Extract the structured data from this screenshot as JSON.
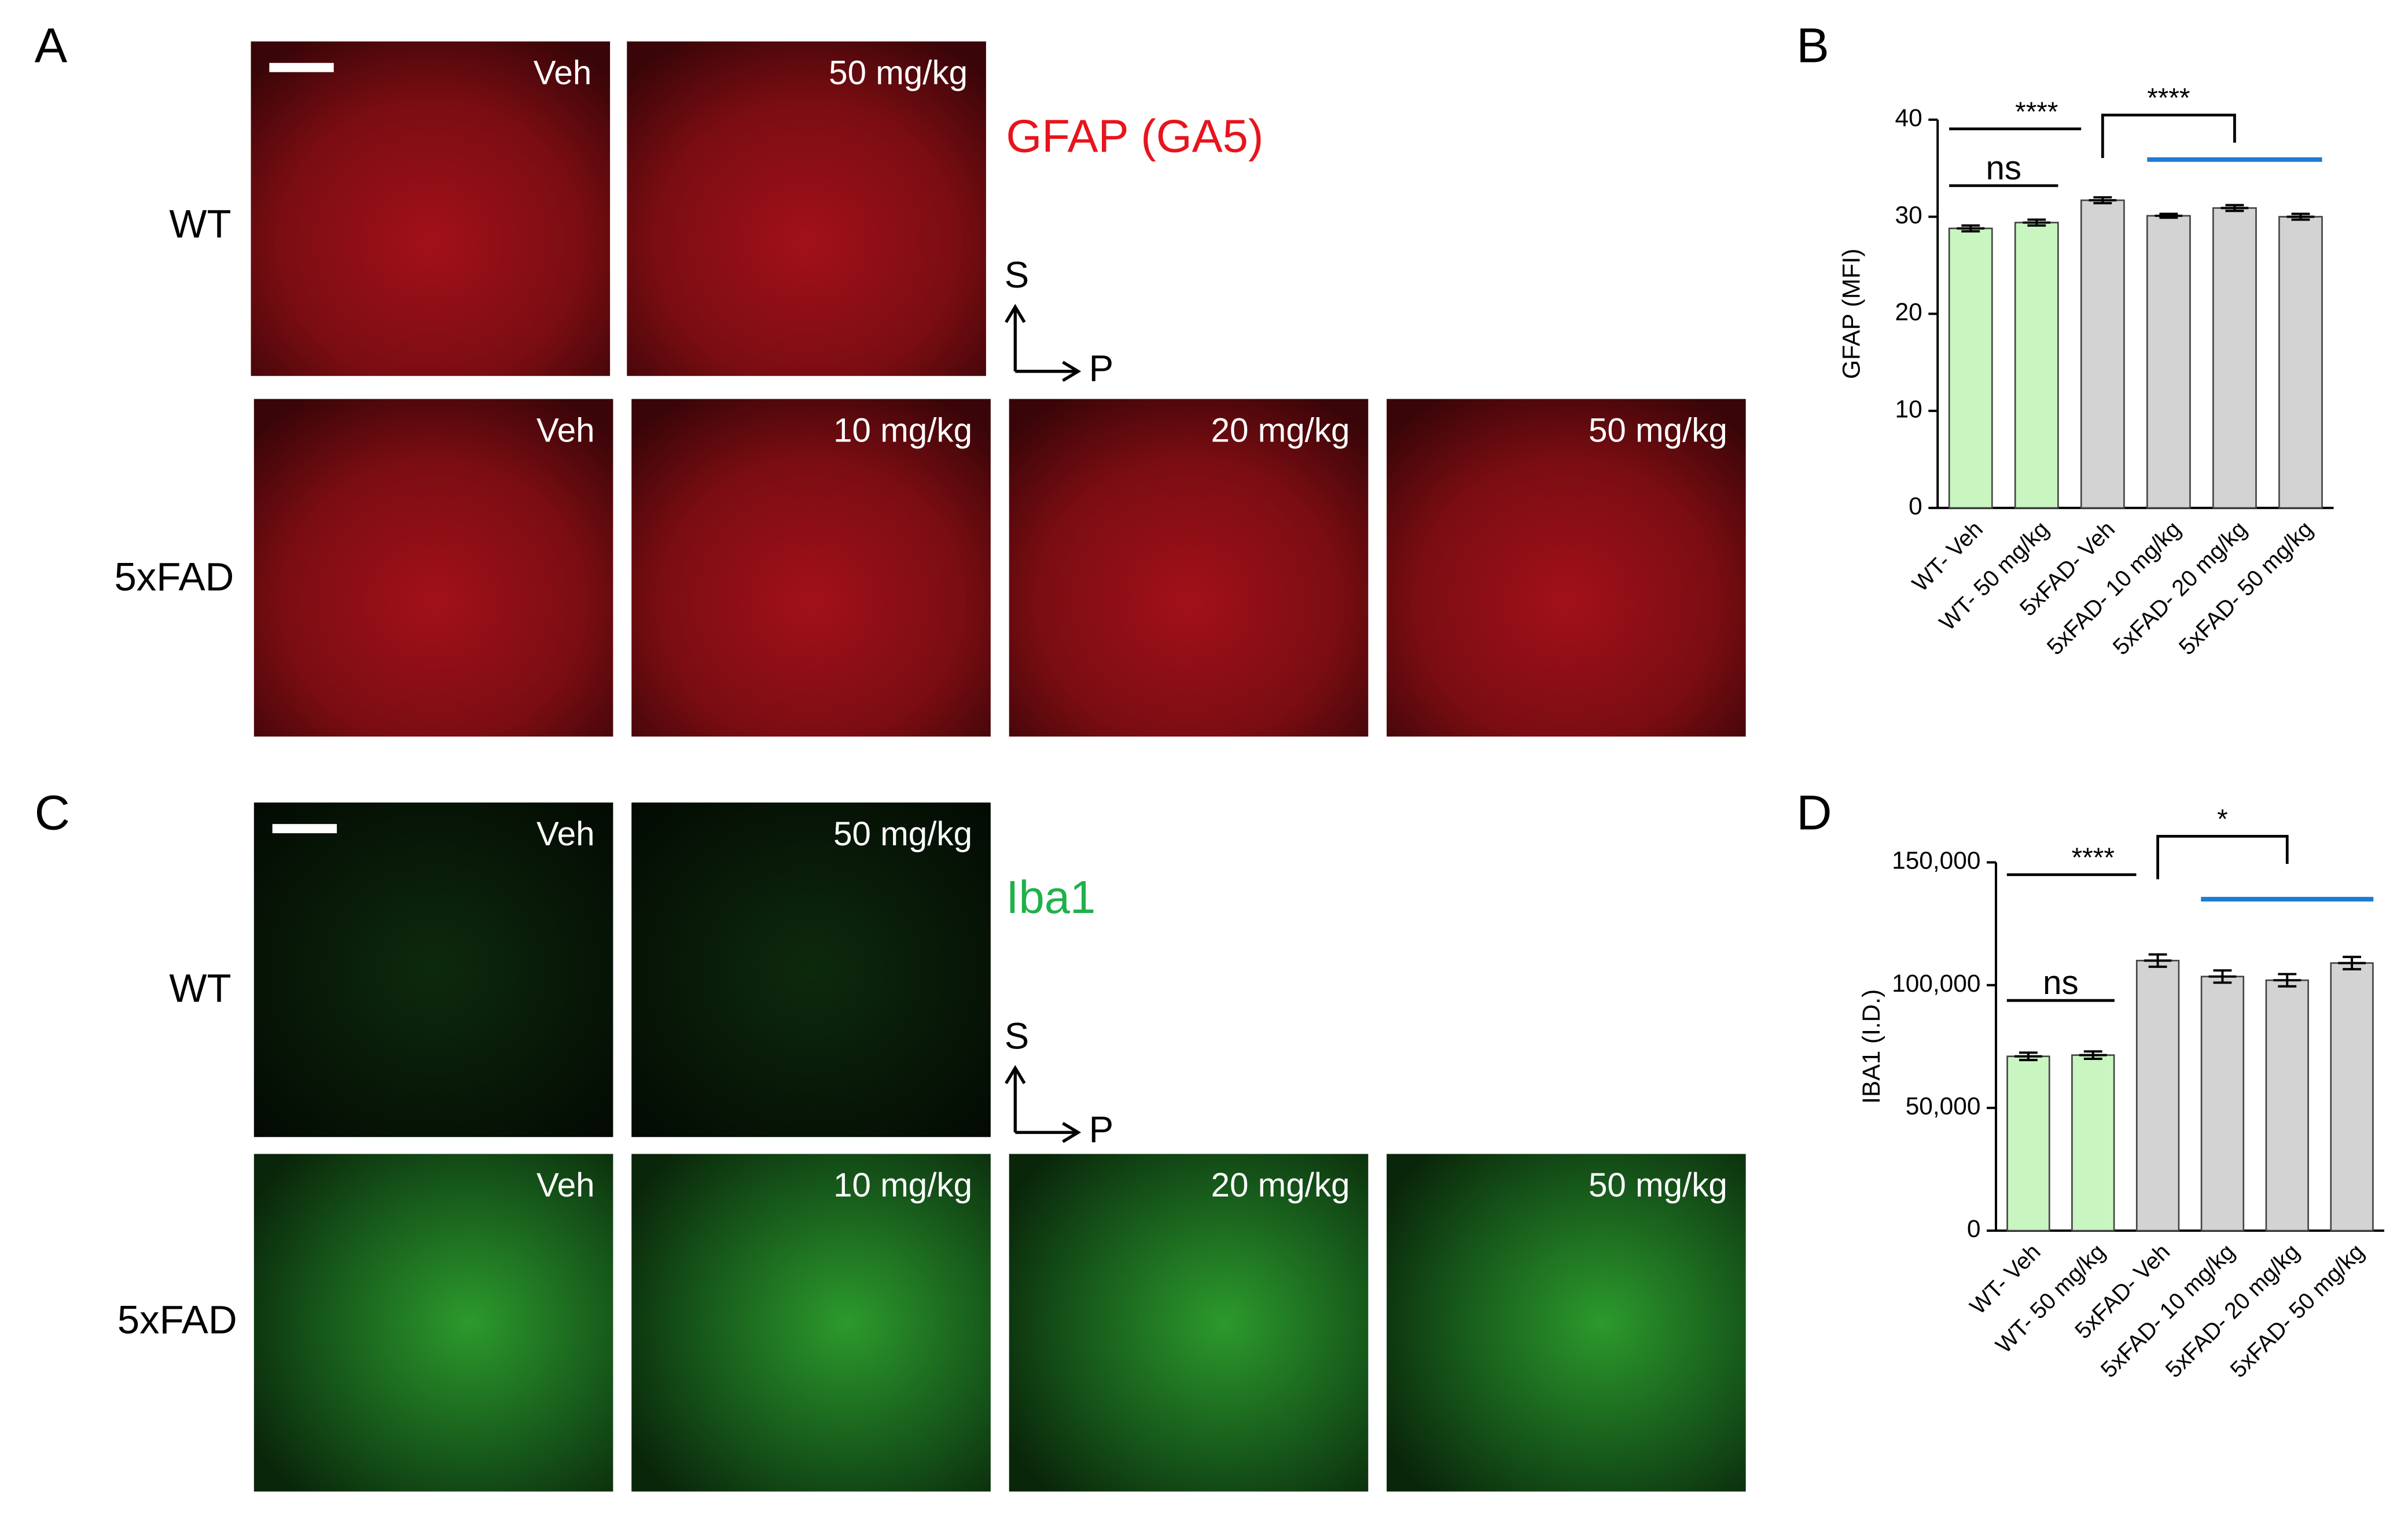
{
  "panel_letters": [
    "A",
    "B",
    "C",
    "D"
  ],
  "image_panels": [
    {
      "stain": "GFAP (GA5)",
      "stain_color": "#e8141c",
      "axis": [
        "S",
        "P"
      ],
      "rows": [
        {
          "label": "WT",
          "images": [
            "Veh",
            "50 mg/kg"
          ]
        },
        {
          "label": "5xFAD",
          "images": [
            "Veh",
            "10 mg/kg",
            "20 mg/kg",
            "50 mg/kg"
          ]
        }
      ]
    },
    {
      "stain": "Iba1",
      "stain_color": "#1fb14b",
      "axis": [
        "S",
        "P"
      ],
      "rows": [
        {
          "label": "WT",
          "images": [
            "Veh",
            "50 mg/kg"
          ]
        },
        {
          "label": "5xFAD",
          "images": [
            "Veh",
            "10 mg/kg",
            "20 mg/kg",
            "50 mg/kg"
          ]
        }
      ]
    }
  ],
  "chart_data": [
    {
      "type": "bar",
      "ylabel": "GFAP (MFI)",
      "categories": [
        "WT- Veh",
        "WT- 50 mg/kg",
        "5xFAD- Veh",
        "5xFAD- 10 mg/kg",
        "5xFAD- 20 mg/kg",
        "5xFAD- 50 mg/kg"
      ],
      "values": [
        28.8,
        29.4,
        31.7,
        30.1,
        30.9,
        30.0
      ],
      "errors": [
        0.3,
        0.3,
        0.3,
        0.2,
        0.3,
        0.3
      ],
      "colors": [
        "#c8f5c0",
        "#c8f5c0",
        "#d3d3d3",
        "#d3d3d3",
        "#d3d3d3",
        "#d3d3d3"
      ],
      "ylim": [
        0,
        40
      ],
      "yticks": [
        0,
        10,
        20,
        30,
        40
      ],
      "annotations": [
        "****",
        "ns",
        "****"
      ]
    },
    {
      "type": "bar",
      "ylabel": "IBA1 (I.D.)",
      "categories": [
        "WT- Veh",
        "WT- 50 mg/kg",
        "5xFAD- Veh",
        "5xFAD- 10 mg/kg",
        "5xFAD- 20 mg/kg",
        "5xFAD- 50 mg/kg"
      ],
      "values": [
        71000,
        71500,
        110000,
        103500,
        102000,
        109000
      ],
      "errors": [
        1500,
        1500,
        2500,
        2500,
        2500,
        2500
      ],
      "colors": [
        "#c8f5c0",
        "#c8f5c0",
        "#d3d3d3",
        "#d3d3d3",
        "#d3d3d3",
        "#d3d3d3"
      ],
      "ylim": [
        0,
        150000
      ],
      "yticks": [
        0,
        {
          "value": 50000,
          "label": "50,000"
        },
        {
          "value": 100000,
          "label": "100,000"
        },
        {
          "value": 150000,
          "label": "150,000"
        }
      ],
      "annotations": [
        "****",
        "ns",
        "*"
      ]
    }
  ]
}
